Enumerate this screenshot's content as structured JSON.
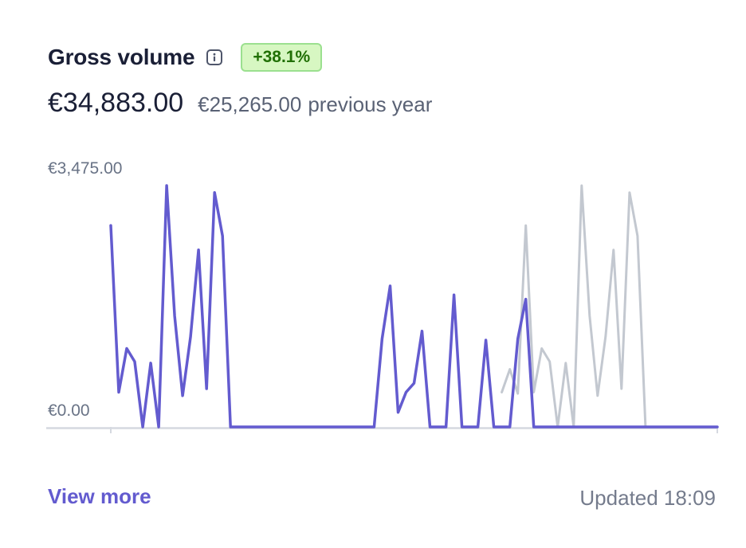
{
  "card": {
    "title": "Gross volume",
    "info_icon": "info-icon",
    "change_badge": "+38.1%",
    "current_amount": "€34,883.00",
    "previous_amount": "€25,265.00",
    "previous_label": "previous year",
    "view_more_label": "View more",
    "updated_text": "Updated 18:09"
  },
  "colors": {
    "accent": "#635bcf",
    "previous_series": "#c3c8d0",
    "badge_bg": "#d7f7c2",
    "badge_text": "#217005"
  },
  "chart_data": {
    "type": "line",
    "title": "",
    "xlabel": "",
    "ylabel": "",
    "y_tick_labels": [
      "€3,475.00",
      "€0.00"
    ],
    "ylim": [
      0,
      3475
    ],
    "grid": false,
    "legend": "none",
    "series": [
      {
        "values": [
          2900,
          500,
          1130,
          940,
          0,
          920,
          0,
          3475,
          1600,
          450,
          1300,
          2550,
          550,
          3375,
          2750,
          0,
          0,
          0,
          0,
          0,
          0,
          0,
          0,
          0,
          0,
          0,
          0,
          0,
          0,
          0,
          0,
          0,
          0,
          0,
          1270,
          2030,
          210,
          500,
          630,
          1380,
          0,
          0,
          0,
          1900,
          0,
          0,
          0,
          1250,
          0,
          0,
          0,
          1270,
          1840,
          0,
          0,
          0,
          0,
          0,
          0,
          0,
          0,
          0,
          0,
          0,
          0,
          0,
          0,
          0,
          0,
          0,
          0,
          0,
          0,
          0,
          0,
          0,
          0
        ]
      },
      {
        "values": [
          null,
          null,
          null,
          null,
          null,
          null,
          null,
          null,
          null,
          null,
          null,
          null,
          null,
          null,
          null,
          null,
          null,
          null,
          null,
          null,
          null,
          null,
          null,
          null,
          null,
          null,
          null,
          null,
          null,
          null,
          null,
          null,
          null,
          null,
          null,
          null,
          null,
          null,
          null,
          null,
          null,
          null,
          null,
          null,
          null,
          null,
          null,
          null,
          null,
          500,
          830,
          480,
          2900,
          500,
          1130,
          940,
          0,
          920,
          0,
          3475,
          1600,
          450,
          1300,
          2550,
          550,
          3375,
          2750,
          0,
          0,
          0,
          0,
          0,
          0,
          0,
          0,
          0,
          0
        ]
      }
    ]
  }
}
